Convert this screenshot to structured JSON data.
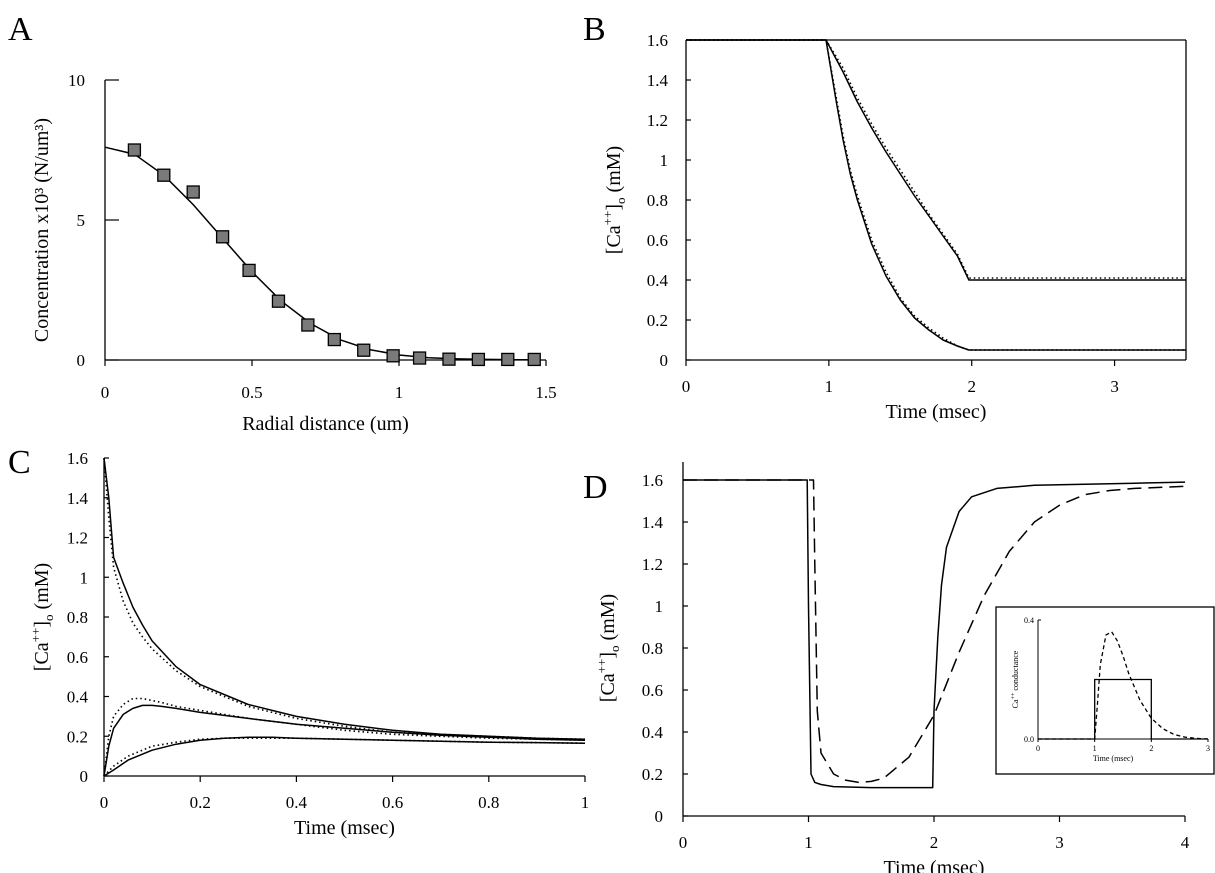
{
  "chart_data": [
    {
      "panel": "A",
      "type": "scatter",
      "xlabel": "Radial distance (um)",
      "ylabel": "Concentration x10³ (N/um³)",
      "xlim": [
        0,
        1.5
      ],
      "ylim": [
        0,
        10
      ],
      "xticks": [
        "0",
        "0.5",
        "1",
        "1.5"
      ],
      "yticks": [
        "0",
        "5",
        "10"
      ],
      "series": [
        {
          "style": "markers",
          "x": [
            0.1,
            0.2,
            0.3,
            0.4,
            0.49,
            0.59,
            0.69,
            0.78,
            0.88,
            0.98,
            1.07,
            1.17,
            1.27,
            1.37,
            1.46
          ],
          "y": [
            7.5,
            6.6,
            6.0,
            4.4,
            3.2,
            2.1,
            1.25,
            0.73,
            0.35,
            0.15,
            0.07,
            0.03,
            0.02,
            0.02,
            0.02
          ]
        },
        {
          "style": "line",
          "x": [
            0.0,
            0.1,
            0.2,
            0.3,
            0.4,
            0.5,
            0.6,
            0.7,
            0.8,
            0.9,
            1.0,
            1.1,
            1.2,
            1.3,
            1.4,
            1.46
          ],
          "y": [
            7.6,
            7.35,
            6.6,
            5.55,
            4.35,
            3.15,
            2.1,
            1.3,
            0.72,
            0.37,
            0.18,
            0.08,
            0.04,
            0.02,
            0.01,
            0.01
          ]
        }
      ]
    },
    {
      "panel": "B",
      "type": "line",
      "xlabel": "Time (msec)",
      "ylabel": "[Ca++]o (mM)",
      "xlim": [
        0,
        3.5
      ],
      "ylim": [
        0,
        1.6
      ],
      "xticks": [
        "0",
        "1",
        "2",
        "3"
      ],
      "yticks": [
        "0",
        "0.2",
        "0.4",
        "0.6",
        "0.8",
        "1",
        "1.2",
        "1.4",
        "1.6"
      ],
      "series": [
        {
          "style": "solid",
          "x": [
            0,
            0.98,
            1.1,
            1.2,
            1.3,
            1.4,
            1.5,
            1.6,
            1.7,
            1.8,
            1.9,
            1.98,
            3.5
          ],
          "y": [
            1.6,
            1.6,
            1.44,
            1.29,
            1.16,
            1.04,
            0.93,
            0.82,
            0.72,
            0.62,
            0.52,
            0.4,
            0.4
          ]
        },
        {
          "style": "dotted",
          "x": [
            0,
            0.98,
            1.1,
            1.2,
            1.3,
            1.4,
            1.5,
            1.6,
            1.7,
            1.8,
            1.9,
            1.98,
            3.5
          ],
          "y": [
            1.6,
            1.6,
            1.46,
            1.31,
            1.18,
            1.06,
            0.95,
            0.84,
            0.73,
            0.63,
            0.53,
            0.41,
            0.41
          ]
        },
        {
          "style": "solid",
          "x": [
            0,
            0.98,
            1.05,
            1.1,
            1.15,
            1.2,
            1.3,
            1.4,
            1.5,
            1.6,
            1.7,
            1.8,
            1.9,
            1.98,
            3.5
          ],
          "y": [
            1.6,
            1.6,
            1.3,
            1.1,
            0.93,
            0.8,
            0.58,
            0.42,
            0.3,
            0.21,
            0.15,
            0.1,
            0.07,
            0.05,
            0.05
          ]
        },
        {
          "style": "dotted",
          "x": [
            0,
            0.98,
            1.05,
            1.1,
            1.15,
            1.2,
            1.3,
            1.4,
            1.5,
            1.6,
            1.7,
            1.8,
            1.9,
            1.98,
            3.5
          ],
          "y": [
            1.6,
            1.6,
            1.32,
            1.12,
            0.95,
            0.82,
            0.6,
            0.44,
            0.31,
            0.22,
            0.16,
            0.11,
            0.07,
            0.05,
            0.05
          ]
        }
      ]
    },
    {
      "panel": "C",
      "type": "line",
      "xlabel": "Time (msec)",
      "ylabel": "[Ca++]o (mM)",
      "xlim": [
        0,
        1
      ],
      "ylim": [
        0,
        1.6
      ],
      "xticks": [
        "0",
        "0.2",
        "0.4",
        "0.6",
        "0.8",
        "1"
      ],
      "yticks": [
        "0",
        "0.2",
        "0.4",
        "0.6",
        "0.8",
        "1",
        "1.2",
        "1.4",
        "1.6"
      ],
      "series": [
        {
          "style": "solid",
          "x": [
            0,
            0.01,
            0.02,
            0.04,
            0.06,
            0.08,
            0.1,
            0.15,
            0.2,
            0.3,
            0.4,
            0.5,
            0.6,
            0.7,
            0.8,
            0.9,
            1.0
          ],
          "y": [
            1.6,
            1.4,
            1.1,
            0.97,
            0.85,
            0.76,
            0.68,
            0.55,
            0.46,
            0.36,
            0.3,
            0.26,
            0.23,
            0.21,
            0.2,
            0.19,
            0.185
          ]
        },
        {
          "style": "dotted",
          "x": [
            0,
            0.01,
            0.02,
            0.04,
            0.06,
            0.08,
            0.1,
            0.15,
            0.2,
            0.3,
            0.4,
            0.5,
            0.6,
            0.7,
            0.8,
            0.9,
            1.0
          ],
          "y": [
            1.6,
            1.3,
            1.05,
            0.88,
            0.77,
            0.7,
            0.64,
            0.53,
            0.45,
            0.35,
            0.29,
            0.25,
            0.22,
            0.21,
            0.2,
            0.19,
            0.185
          ]
        },
        {
          "style": "solid",
          "x": [
            0,
            0.01,
            0.02,
            0.04,
            0.06,
            0.08,
            0.1,
            0.12,
            0.15,
            0.2,
            0.3,
            0.4,
            0.5,
            0.6,
            0.7,
            0.8,
            0.9,
            1.0
          ],
          "y": [
            0.0,
            0.15,
            0.24,
            0.31,
            0.34,
            0.355,
            0.355,
            0.35,
            0.34,
            0.32,
            0.29,
            0.26,
            0.24,
            0.22,
            0.205,
            0.195,
            0.185,
            0.18
          ]
        },
        {
          "style": "dotted",
          "x": [
            0,
            0.01,
            0.02,
            0.04,
            0.06,
            0.08,
            0.1,
            0.12,
            0.15,
            0.2,
            0.3,
            0.4,
            0.5,
            0.6,
            0.7,
            0.8,
            0.9,
            1.0
          ],
          "y": [
            0.0,
            0.2,
            0.3,
            0.36,
            0.39,
            0.39,
            0.38,
            0.37,
            0.35,
            0.33,
            0.29,
            0.26,
            0.23,
            0.21,
            0.2,
            0.19,
            0.185,
            0.18
          ]
        },
        {
          "style": "solid",
          "x": [
            0,
            0.02,
            0.05,
            0.1,
            0.15,
            0.2,
            0.25,
            0.3,
            0.35,
            0.4,
            0.5,
            0.6,
            0.7,
            0.8,
            0.9,
            1.0
          ],
          "y": [
            0.0,
            0.03,
            0.08,
            0.13,
            0.16,
            0.18,
            0.19,
            0.195,
            0.195,
            0.19,
            0.185,
            0.18,
            0.175,
            0.17,
            0.168,
            0.165
          ]
        },
        {
          "style": "dotted",
          "x": [
            0,
            0.02,
            0.05,
            0.1,
            0.15,
            0.2,
            0.25,
            0.3,
            0.35,
            0.4,
            0.5,
            0.6,
            0.7,
            0.8,
            0.9,
            1.0
          ],
          "y": [
            0.0,
            0.05,
            0.1,
            0.15,
            0.17,
            0.185,
            0.19,
            0.19,
            0.19,
            0.19,
            0.185,
            0.18,
            0.175,
            0.17,
            0.168,
            0.165
          ]
        }
      ]
    },
    {
      "panel": "D",
      "type": "line",
      "xlabel": "Time (msec)",
      "ylabel": "[Ca++]o (mM)",
      "xlim": [
        0,
        4
      ],
      "ylim": [
        0,
        1.6
      ],
      "xticks": [
        "0",
        "1",
        "2",
        "3",
        "4"
      ],
      "yticks": [
        "0",
        "0.2",
        "0.4",
        "0.6",
        "0.8",
        "1",
        "1.2",
        "1.4",
        "1.6"
      ],
      "series": [
        {
          "style": "solid",
          "x": [
            0,
            0.99,
            1.0,
            1.02,
            1.05,
            1.1,
            1.2,
            1.5,
            1.99,
            2.0,
            2.03,
            2.06,
            2.1,
            2.2,
            2.3,
            2.5,
            2.8,
            3.2,
            3.6,
            4.0
          ],
          "y": [
            1.6,
            1.6,
            1.0,
            0.2,
            0.16,
            0.15,
            0.14,
            0.135,
            0.135,
            0.5,
            0.85,
            1.1,
            1.28,
            1.45,
            1.52,
            1.56,
            1.575,
            1.58,
            1.585,
            1.59
          ]
        },
        {
          "style": "dashed",
          "x": [
            0,
            1.04,
            1.05,
            1.07,
            1.1,
            1.2,
            1.3,
            1.4,
            1.5,
            1.6,
            1.8,
            2.0,
            2.2,
            2.4,
            2.6,
            2.8,
            3.0,
            3.2,
            3.4,
            3.6,
            3.8,
            4.0
          ],
          "y": [
            1.6,
            1.6,
            1.2,
            0.5,
            0.3,
            0.2,
            0.17,
            0.16,
            0.165,
            0.18,
            0.28,
            0.48,
            0.78,
            1.05,
            1.26,
            1.4,
            1.48,
            1.53,
            1.55,
            1.56,
            1.565,
            1.57
          ]
        }
      ],
      "inset": {
        "ylabel": "Ca++ conductance",
        "xlabel": "Time (msec)",
        "xlim": [
          0,
          3
        ],
        "ylim": [
          0,
          0.4
        ],
        "xticks": [
          "0",
          "1",
          "2",
          "3"
        ],
        "yticks": [
          "0.0",
          "0.4"
        ],
        "series": [
          {
            "style": "solid",
            "x": [
              0,
              1.0,
              1.0,
              2.0,
              2.0,
              3.0
            ],
            "y": [
              0,
              0,
              0.2,
              0.2,
              0,
              0
            ]
          },
          {
            "style": "dashed",
            "x": [
              0,
              1.0,
              1.05,
              1.1,
              1.2,
              1.3,
              1.4,
              1.5,
              1.6,
              1.8,
              2.0,
              2.2,
              2.4,
              2.6,
              2.8,
              3.0
            ],
            "y": [
              0,
              0,
              0.12,
              0.25,
              0.35,
              0.36,
              0.33,
              0.28,
              0.22,
              0.13,
              0.07,
              0.035,
              0.015,
              0.006,
              0.002,
              0
            ]
          }
        ]
      }
    }
  ],
  "panels": {
    "A": "A",
    "B": "B",
    "C": "C",
    "D": "D"
  }
}
